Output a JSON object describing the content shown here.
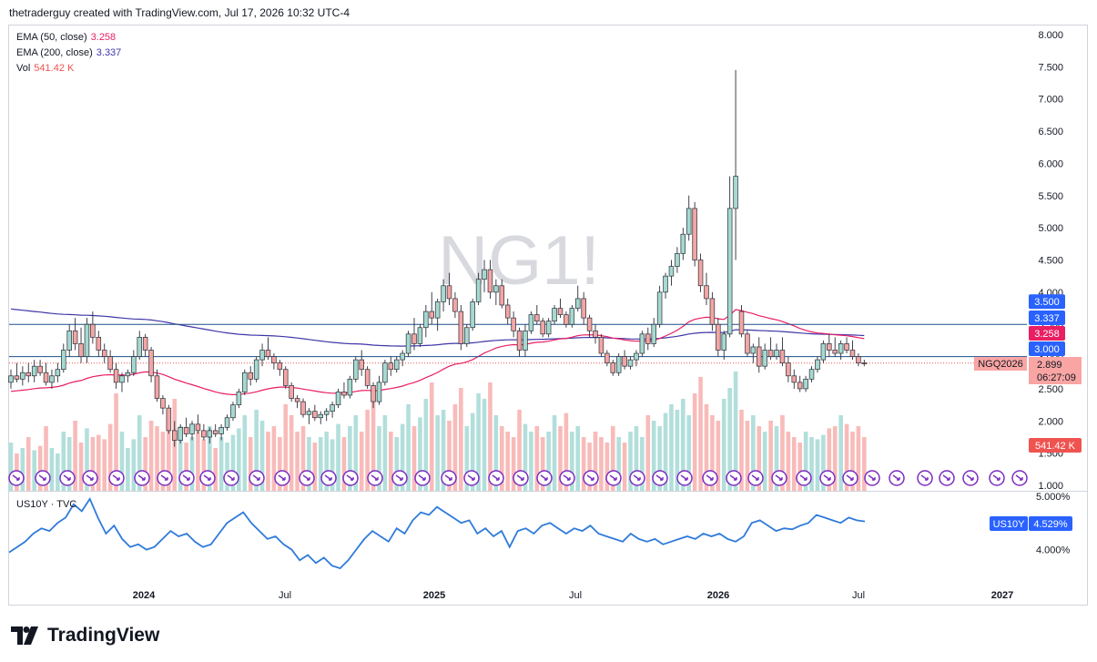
{
  "header": "thetraderguy created with TradingView.com, Jul 17, 2026 10:32 UTC-4",
  "legend": {
    "ema50_label": "EMA (50, close)",
    "ema50_value": "3.258",
    "ema200_label": "EMA (200, close)",
    "ema200_value": "3.337",
    "vol_label": "Vol",
    "vol_value": "541.42 K"
  },
  "watermark": "NG1!",
  "symbol_tag": "NGQ2026",
  "countdown": "06:27:09",
  "price_tags": {
    "r1": "3.500",
    "ema200": "3.337",
    "ema50": "3.258",
    "r2": "3.000",
    "last": "2.899",
    "vol": "541.42 K"
  },
  "sub_pane": {
    "label": "US10Y · TVC",
    "value_tag": "US10Y",
    "value": "4.529%",
    "ticks": [
      "5.000%",
      "4.000%"
    ]
  },
  "brand": "TradingView",
  "colors": {
    "up": "#26a69a",
    "down": "#ef5350",
    "ema50": "#e91e63",
    "ema200": "#3f36a8",
    "vol_up": "#b2dfdb",
    "vol_down": "#f8bbb9",
    "hline": "#1e4f8a",
    "us10y": "#2f7bdb",
    "event": "#7b2cbf"
  },
  "chart_data": {
    "type": "candlestick",
    "timeframe": "weekly",
    "y_axis_ticks": [
      "8.000",
      "7.500",
      "7.000",
      "6.500",
      "6.000",
      "5.500",
      "5.000",
      "4.500",
      "4.000",
      "3.500",
      "3.000",
      "2.500",
      "2.000",
      "1.500",
      "1.000"
    ],
    "ylim": [
      1.0,
      8.0
    ],
    "x_axis_labels": [
      "2024",
      "Jul",
      "2025",
      "Jul",
      "2026",
      "Jul",
      "2027"
    ],
    "horizontal_lines": [
      3.5,
      3.0
    ],
    "last_price": 2.899,
    "ema50_last": 3.258,
    "ema200_last": 3.337,
    "volume_last": "541.42 K",
    "candles": [
      [
        2.6,
        2.8,
        2.5,
        2.7
      ],
      [
        2.7,
        2.9,
        2.6,
        2.65
      ],
      [
        2.65,
        2.85,
        2.55,
        2.75
      ],
      [
        2.75,
        2.9,
        2.6,
        2.7
      ],
      [
        2.7,
        2.95,
        2.6,
        2.85
      ],
      [
        2.85,
        2.95,
        2.7,
        2.75
      ],
      [
        2.75,
        2.9,
        2.55,
        2.6
      ],
      [
        2.6,
        2.8,
        2.5,
        2.7
      ],
      [
        2.7,
        2.9,
        2.6,
        2.8
      ],
      [
        2.8,
        3.2,
        2.75,
        3.1
      ],
      [
        3.1,
        3.5,
        3.0,
        3.4
      ],
      [
        3.4,
        3.6,
        3.1,
        3.2
      ],
      [
        3.2,
        3.45,
        2.9,
        3.0
      ],
      [
        3.0,
        3.6,
        2.9,
        3.5
      ],
      [
        3.5,
        3.7,
        3.2,
        3.3
      ],
      [
        3.3,
        3.4,
        3.0,
        3.1
      ],
      [
        3.1,
        3.2,
        2.9,
        3.0
      ],
      [
        3.0,
        3.1,
        2.75,
        2.8
      ],
      [
        2.8,
        2.9,
        2.5,
        2.6
      ],
      [
        2.6,
        2.75,
        2.45,
        2.7
      ],
      [
        2.7,
        2.8,
        2.6,
        2.75
      ],
      [
        2.75,
        3.1,
        2.7,
        3.0
      ],
      [
        3.0,
        3.4,
        2.95,
        3.3
      ],
      [
        3.3,
        3.35,
        3.0,
        3.1
      ],
      [
        3.1,
        3.15,
        2.6,
        2.7
      ],
      [
        2.7,
        2.8,
        2.3,
        2.35
      ],
      [
        2.35,
        2.4,
        2.1,
        2.2
      ],
      [
        2.2,
        2.25,
        1.8,
        1.85
      ],
      [
        1.85,
        2.0,
        1.6,
        1.7
      ],
      [
        1.7,
        1.95,
        1.65,
        1.9
      ],
      [
        1.9,
        2.05,
        1.75,
        1.8
      ],
      [
        1.8,
        2.0,
        1.7,
        1.95
      ],
      [
        1.95,
        2.1,
        1.8,
        1.85
      ],
      [
        1.85,
        1.95,
        1.7,
        1.75
      ],
      [
        1.75,
        1.9,
        1.65,
        1.85
      ],
      [
        1.85,
        1.95,
        1.75,
        1.8
      ],
      [
        1.8,
        1.95,
        1.7,
        1.9
      ],
      [
        1.9,
        2.1,
        1.85,
        2.05
      ],
      [
        2.05,
        2.3,
        2.0,
        2.25
      ],
      [
        2.25,
        2.5,
        2.2,
        2.45
      ],
      [
        2.45,
        2.8,
        2.4,
        2.75
      ],
      [
        2.75,
        2.85,
        2.55,
        2.65
      ],
      [
        2.65,
        3.0,
        2.6,
        2.95
      ],
      [
        2.95,
        3.2,
        2.85,
        3.1
      ],
      [
        3.1,
        3.3,
        2.95,
        3.0
      ],
      [
        3.0,
        3.05,
        2.8,
        2.9
      ],
      [
        2.9,
        2.95,
        2.7,
        2.8
      ],
      [
        2.8,
        2.85,
        2.5,
        2.55
      ],
      [
        2.55,
        2.6,
        2.3,
        2.35
      ],
      [
        2.35,
        2.4,
        2.2,
        2.3
      ],
      [
        2.3,
        2.35,
        2.05,
        2.1
      ],
      [
        2.1,
        2.2,
        1.95,
        2.15
      ],
      [
        2.15,
        2.25,
        2.0,
        2.05
      ],
      [
        2.05,
        2.15,
        1.95,
        2.1
      ],
      [
        2.1,
        2.2,
        2.0,
        2.15
      ],
      [
        2.15,
        2.3,
        2.05,
        2.25
      ],
      [
        2.25,
        2.5,
        2.2,
        2.45
      ],
      [
        2.45,
        2.6,
        2.35,
        2.4
      ],
      [
        2.4,
        2.7,
        2.35,
        2.65
      ],
      [
        2.65,
        3.0,
        2.6,
        2.95
      ],
      [
        2.95,
        3.1,
        2.7,
        2.8
      ],
      [
        2.8,
        2.85,
        2.5,
        2.55
      ],
      [
        2.55,
        2.6,
        2.2,
        2.3
      ],
      [
        2.3,
        2.7,
        2.25,
        2.6
      ],
      [
        2.6,
        2.95,
        2.55,
        2.9
      ],
      [
        2.9,
        3.0,
        2.7,
        2.8
      ],
      [
        2.8,
        3.0,
        2.75,
        2.95
      ],
      [
        2.95,
        3.1,
        2.85,
        3.05
      ],
      [
        3.05,
        3.4,
        3.0,
        3.35
      ],
      [
        3.35,
        3.6,
        3.1,
        3.2
      ],
      [
        3.2,
        3.5,
        3.15,
        3.45
      ],
      [
        3.45,
        3.8,
        3.3,
        3.7
      ],
      [
        3.7,
        4.0,
        3.5,
        3.6
      ],
      [
        3.6,
        3.9,
        3.4,
        3.85
      ],
      [
        3.85,
        4.2,
        3.7,
        4.1
      ],
      [
        4.1,
        4.3,
        3.8,
        3.9
      ],
      [
        3.9,
        4.0,
        3.6,
        3.7
      ],
      [
        3.7,
        3.8,
        3.1,
        3.2
      ],
      [
        3.2,
        3.5,
        3.15,
        3.45
      ],
      [
        3.45,
        3.9,
        3.4,
        3.85
      ],
      [
        3.85,
        4.3,
        3.8,
        4.2
      ],
      [
        4.2,
        4.5,
        4.0,
        4.35
      ],
      [
        4.35,
        4.5,
        3.9,
        4.0
      ],
      [
        4.0,
        4.2,
        3.8,
        4.1
      ],
      [
        4.1,
        4.2,
        3.75,
        3.8
      ],
      [
        3.8,
        3.9,
        3.5,
        3.6
      ],
      [
        3.6,
        3.7,
        3.3,
        3.4
      ],
      [
        3.4,
        3.45,
        3.0,
        3.1
      ],
      [
        3.1,
        3.5,
        3.0,
        3.4
      ],
      [
        3.4,
        3.7,
        3.35,
        3.65
      ],
      [
        3.65,
        3.8,
        3.5,
        3.55
      ],
      [
        3.55,
        3.6,
        3.3,
        3.35
      ],
      [
        3.35,
        3.6,
        3.3,
        3.55
      ],
      [
        3.55,
        3.8,
        3.5,
        3.75
      ],
      [
        3.75,
        3.9,
        3.6,
        3.65
      ],
      [
        3.65,
        3.7,
        3.45,
        3.5
      ],
      [
        3.5,
        3.8,
        3.45,
        3.75
      ],
      [
        3.75,
        4.1,
        3.7,
        3.9
      ],
      [
        3.9,
        4.0,
        3.5,
        3.6
      ],
      [
        3.6,
        3.65,
        3.3,
        3.4
      ],
      [
        3.4,
        3.5,
        3.2,
        3.3
      ],
      [
        3.3,
        3.35,
        3.0,
        3.05
      ],
      [
        3.05,
        3.1,
        2.85,
        2.9
      ],
      [
        2.9,
        2.95,
        2.7,
        2.75
      ],
      [
        2.75,
        3.05,
        2.7,
        3.0
      ],
      [
        3.0,
        3.1,
        2.8,
        2.85
      ],
      [
        2.85,
        3.0,
        2.8,
        2.95
      ],
      [
        2.95,
        3.1,
        2.85,
        3.05
      ],
      [
        3.05,
        3.4,
        3.0,
        3.35
      ],
      [
        3.35,
        3.45,
        3.1,
        3.2
      ],
      [
        3.2,
        3.6,
        3.15,
        3.5
      ],
      [
        3.5,
        4.1,
        3.45,
        4.0
      ],
      [
        4.0,
        4.3,
        3.9,
        4.25
      ],
      [
        4.25,
        4.5,
        4.1,
        4.4
      ],
      [
        4.4,
        4.7,
        4.3,
        4.6
      ],
      [
        4.6,
        5.0,
        4.5,
        4.9
      ],
      [
        4.9,
        5.5,
        4.8,
        5.3
      ],
      [
        5.3,
        5.4,
        4.4,
        4.5
      ],
      [
        4.5,
        4.6,
        4.0,
        4.1
      ],
      [
        4.1,
        4.3,
        3.8,
        3.9
      ],
      [
        3.9,
        4.0,
        3.4,
        3.5
      ],
      [
        3.5,
        3.6,
        3.0,
        3.1
      ],
      [
        3.1,
        3.4,
        2.95,
        3.35
      ],
      [
        3.35,
        5.8,
        3.3,
        5.3
      ],
      [
        5.3,
        7.45,
        4.5,
        5.8
      ],
      [
        3.7,
        3.8,
        3.3,
        3.35
      ],
      [
        3.35,
        3.4,
        3.0,
        3.05
      ],
      [
        3.05,
        3.2,
        2.9,
        3.15
      ],
      [
        3.15,
        3.3,
        2.75,
        2.85
      ],
      [
        2.85,
        3.2,
        2.8,
        3.1
      ],
      [
        3.1,
        3.3,
        2.95,
        3.0
      ],
      [
        3.0,
        3.2,
        2.95,
        3.1
      ],
      [
        3.1,
        3.3,
        2.85,
        2.9
      ],
      [
        2.9,
        3.0,
        2.6,
        2.7
      ],
      [
        2.7,
        2.8,
        2.5,
        2.6
      ],
      [
        2.6,
        2.7,
        2.45,
        2.5
      ],
      [
        2.5,
        2.7,
        2.45,
        2.65
      ],
      [
        2.65,
        2.85,
        2.6,
        2.8
      ],
      [
        2.8,
        3.0,
        2.75,
        2.95
      ],
      [
        2.95,
        3.25,
        2.9,
        3.2
      ],
      [
        3.2,
        3.35,
        3.0,
        3.1
      ],
      [
        3.1,
        3.3,
        3.0,
        3.05
      ],
      [
        3.05,
        3.25,
        2.95,
        3.2
      ],
      [
        3.2,
        3.3,
        3.05,
        3.1
      ],
      [
        3.1,
        3.25,
        2.95,
        3.0
      ],
      [
        3.0,
        3.05,
        2.85,
        2.9
      ],
      [
        2.9,
        2.95,
        2.85,
        2.899
      ]
    ],
    "volume_relative": [
      0.45,
      0.35,
      0.4,
      0.5,
      0.38,
      0.42,
      0.6,
      0.4,
      0.35,
      0.55,
      0.5,
      0.65,
      0.45,
      0.58,
      0.5,
      0.52,
      0.48,
      0.62,
      0.9,
      0.55,
      0.4,
      0.48,
      0.7,
      0.5,
      0.65,
      0.6,
      0.55,
      0.7,
      0.85,
      0.6,
      0.45,
      0.5,
      0.55,
      0.48,
      0.6,
      0.4,
      0.5,
      0.45,
      0.52,
      0.58,
      0.7,
      0.5,
      0.75,
      0.65,
      0.55,
      0.6,
      0.5,
      0.8,
      0.7,
      0.55,
      0.6,
      0.5,
      0.45,
      0.5,
      0.55,
      0.48,
      0.62,
      0.5,
      0.6,
      0.7,
      0.55,
      0.75,
      0.9,
      0.6,
      0.7,
      0.55,
      0.5,
      0.62,
      0.8,
      0.6,
      0.68,
      0.85,
      1.0,
      0.7,
      0.75,
      0.65,
      0.8,
      0.95,
      0.6,
      0.72,
      0.9,
      0.85,
      1.0,
      0.7,
      0.6,
      0.55,
      0.5,
      0.75,
      0.62,
      0.55,
      0.6,
      0.5,
      0.55,
      0.7,
      0.6,
      0.72,
      0.55,
      0.6,
      0.5,
      0.45,
      0.55,
      0.5,
      0.45,
      0.6,
      0.5,
      0.45,
      0.55,
      0.6,
      0.5,
      0.7,
      0.65,
      0.6,
      0.72,
      0.8,
      0.75,
      0.85,
      0.7,
      0.9,
      1.05,
      0.8,
      0.7,
      0.65,
      0.85,
      0.95,
      1.1,
      0.75,
      0.65,
      0.7,
      0.6,
      0.55,
      0.65,
      0.6,
      0.7,
      0.55,
      0.5,
      0.45,
      0.55,
      0.5,
      0.48,
      0.52,
      0.58,
      0.6,
      0.7,
      0.62,
      0.55,
      0.6,
      0.5
    ],
    "series": [
      {
        "name": "US10Y · TVC",
        "last": "4.529%",
        "ylim": [
          3.55,
          5.0
        ],
        "values": [
          3.95,
          4.05,
          4.15,
          4.3,
          4.4,
          4.35,
          4.5,
          4.6,
          4.85,
          4.72,
          4.95,
          4.6,
          4.3,
          4.45,
          4.2,
          4.05,
          4.1,
          4.0,
          4.05,
          4.2,
          4.35,
          4.25,
          4.3,
          4.15,
          4.05,
          4.1,
          4.3,
          4.5,
          4.6,
          4.7,
          4.5,
          4.35,
          4.2,
          4.25,
          4.1,
          4.0,
          3.8,
          3.9,
          3.75,
          3.85,
          3.7,
          3.65,
          3.8,
          4.0,
          4.2,
          4.35,
          4.25,
          4.15,
          4.4,
          4.3,
          4.55,
          4.7,
          4.65,
          4.8,
          4.7,
          4.6,
          4.5,
          4.55,
          4.3,
          4.4,
          4.25,
          4.35,
          4.05,
          4.35,
          4.4,
          4.3,
          4.45,
          4.5,
          4.4,
          4.3,
          4.4,
          4.35,
          4.45,
          4.3,
          4.25,
          4.2,
          4.15,
          4.3,
          4.2,
          4.15,
          4.2,
          4.1,
          4.15,
          4.2,
          4.25,
          4.2,
          4.3,
          4.25,
          4.3,
          4.2,
          4.15,
          4.25,
          4.5,
          4.55,
          4.45,
          4.35,
          4.4,
          4.38,
          4.45,
          4.5,
          4.65,
          4.6,
          4.55,
          4.5,
          4.6,
          4.55,
          4.529
        ]
      }
    ]
  }
}
